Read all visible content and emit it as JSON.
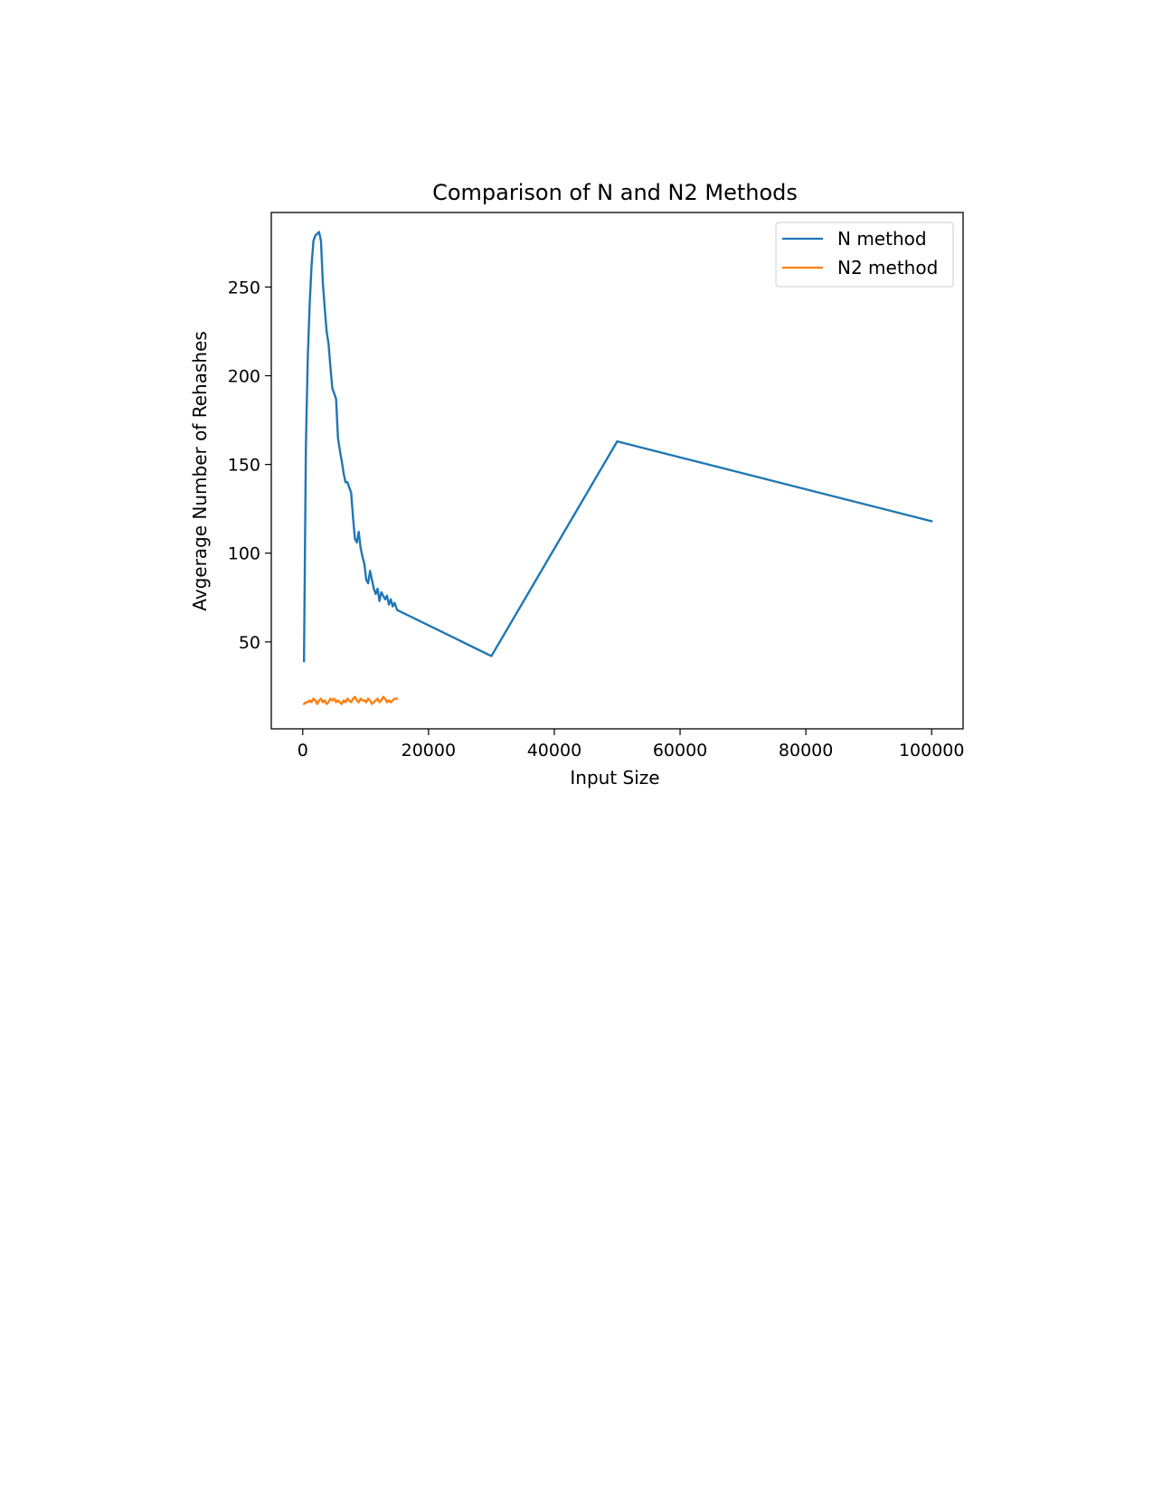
{
  "chart_data": {
    "type": "line",
    "title": "Comparison of N and N2 Methods",
    "xlabel": "Input Size",
    "ylabel": "Avgerage Number of Rehashes",
    "xlim": [
      -5000,
      105000
    ],
    "ylim": [
      1,
      292
    ],
    "xticks": [
      0,
      20000,
      40000,
      60000,
      80000,
      100000
    ],
    "xtick_labels": [
      "0",
      "20000",
      "40000",
      "60000",
      "80000",
      "100000"
    ],
    "yticks": [
      50,
      100,
      150,
      200,
      250
    ],
    "ytick_labels": [
      "50",
      "100",
      "150",
      "200",
      "250"
    ],
    "grid": false,
    "legend": {
      "position": "top-right"
    },
    "series": [
      {
        "name": "N method",
        "color": "#1f77b4",
        "x": [
          200,
          500,
          800,
          1100,
          1400,
          1700,
          2000,
          2300,
          2600,
          2900,
          3200,
          3500,
          3800,
          4100,
          4400,
          4700,
          5000,
          5300,
          5600,
          5900,
          6200,
          6500,
          6800,
          7100,
          7400,
          7700,
          8000,
          8300,
          8600,
          8900,
          9200,
          9500,
          9800,
          10100,
          10400,
          10700,
          11000,
          11300,
          11600,
          11900,
          12200,
          12500,
          12800,
          13100,
          13400,
          13700,
          14000,
          14300,
          14600,
          15000,
          30000,
          50000,
          100000
        ],
        "values": [
          39,
          160,
          210,
          240,
          262,
          276,
          279,
          280,
          281,
          276,
          252,
          238,
          225,
          218,
          205,
          193,
          190,
          187,
          165,
          158,
          152,
          145,
          140,
          140,
          137,
          134,
          120,
          108,
          106,
          112,
          103,
          98,
          94,
          85,
          83,
          90,
          85,
          80,
          77,
          80,
          73,
          78,
          76,
          74,
          76,
          71,
          74,
          70,
          72,
          68,
          42,
          163,
          118
        ]
      },
      {
        "name": "N2 method",
        "color": "#ff7f0e",
        "x": [
          200,
          500,
          800,
          1100,
          1400,
          1700,
          2000,
          2300,
          2600,
          2900,
          3200,
          3500,
          3800,
          4100,
          4400,
          4700,
          5000,
          5300,
          5600,
          5900,
          6200,
          6500,
          6800,
          7100,
          7400,
          7700,
          8000,
          8300,
          8600,
          8900,
          9200,
          9500,
          9800,
          10100,
          10400,
          10700,
          11000,
          11300,
          11600,
          11900,
          12200,
          12500,
          12800,
          13100,
          13400,
          13700,
          14000,
          14300,
          14600,
          15000
        ],
        "values": [
          15,
          16,
          16,
          17,
          16,
          18,
          17,
          15,
          17,
          18,
          16,
          17,
          15,
          16,
          18,
          17,
          18,
          16,
          17,
          16,
          15,
          17,
          16,
          18,
          17,
          16,
          18,
          19,
          17,
          16,
          18,
          17,
          17,
          16,
          18,
          17,
          15,
          16,
          17,
          18,
          16,
          17,
          19,
          18,
          16,
          17,
          16,
          17,
          18,
          18
        ]
      }
    ]
  }
}
